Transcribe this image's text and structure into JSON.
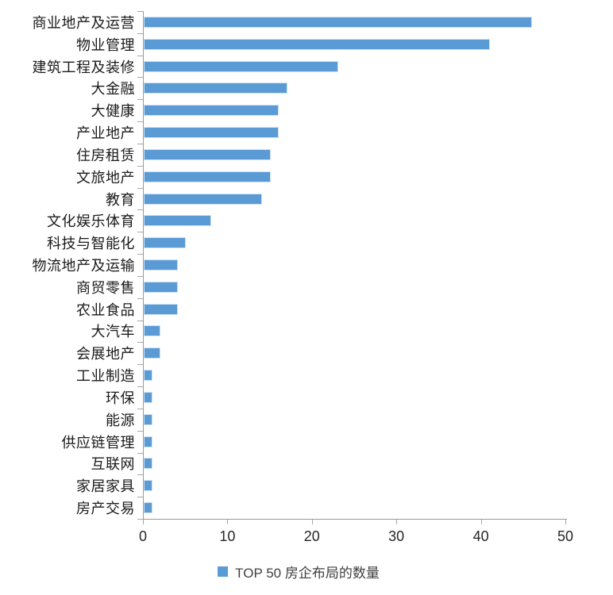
{
  "chart_data": {
    "type": "bar",
    "orientation": "horizontal",
    "title": "",
    "xlabel": "",
    "ylabel": "",
    "categories": [
      "商业地产及运营",
      "物业管理",
      "建筑工程及装修",
      "大金融",
      "大健康",
      "产业地产",
      "住房租赁",
      "文旅地产",
      "教育",
      "文化娱乐体育",
      "科技与智能化",
      "物流地产及运输",
      "商贸零售",
      "农业食品",
      "大汽车",
      "会展地产",
      "工业制造",
      "环保",
      "能源",
      "供应链管理",
      "互联网",
      "家居家具",
      "房产交易"
    ],
    "values": [
      46,
      41,
      23,
      17,
      16,
      16,
      15,
      15,
      14,
      8,
      5,
      4,
      4,
      4,
      2,
      2,
      1,
      1,
      1,
      1,
      1,
      1,
      1
    ],
    "series_name": "TOP 50 房企布局的数量",
    "xlim": [
      0,
      50
    ],
    "x_ticks": [
      0,
      10,
      20,
      30,
      40,
      50
    ],
    "grid": false,
    "legend_position": "bottom",
    "bar_color": "#5B9BD5",
    "bar_border_color": "#CFE2F3",
    "axis_color": "#9A9A9A"
  },
  "legend": {
    "label": "TOP 50 房企布局的数量",
    "swatch_color": "#5B9BD5"
  }
}
